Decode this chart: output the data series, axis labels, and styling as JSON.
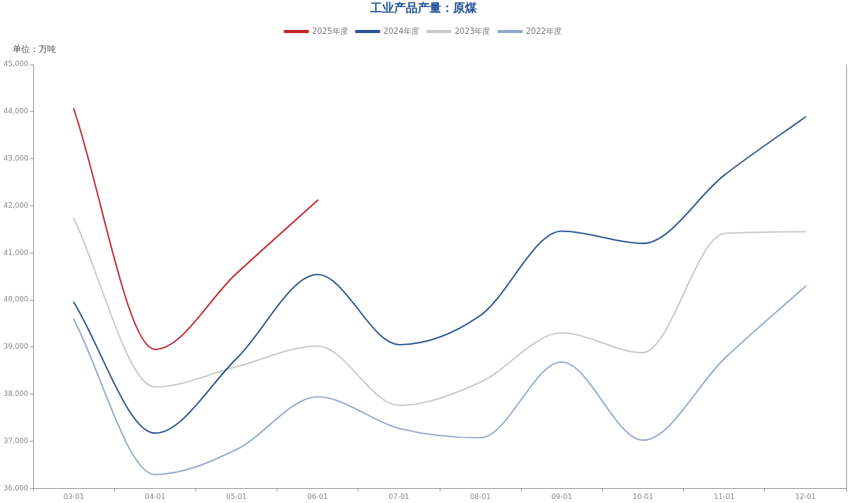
{
  "chart_data": {
    "type": "line",
    "title": "工业产品产量：原煤",
    "ylabel": "单位：万吨",
    "categories": [
      "03-01",
      "04-01",
      "05-01",
      "06-01",
      "07-01",
      "08-01",
      "09-01",
      "10-01",
      "11-01",
      "12-01"
    ],
    "series": [
      {
        "name": "2025年度",
        "color": "#c0282d",
        "values": [
          44060,
          38950,
          40560,
          42120,
          null,
          null,
          null,
          null,
          null,
          null
        ]
      },
      {
        "name": "2024年度",
        "color": "#2a5592",
        "values": [
          39950,
          37170,
          38750,
          40540,
          39050,
          39670,
          41460,
          41200,
          42650,
          43890
        ]
      },
      {
        "name": "2023年度",
        "color": "#c8c8c8",
        "values": [
          41730,
          38150,
          38580,
          39020,
          37760,
          38250,
          39300,
          38880,
          41410,
          41450
        ]
      },
      {
        "name": "2022年度",
        "color": "#94a9cf",
        "values": [
          39590,
          36290,
          36820,
          37940,
          37270,
          37070,
          38680,
          37020,
          38750,
          40290
        ]
      }
    ],
    "ylim": [
      36000,
      45000
    ],
    "yticks": [
      {
        "value": 36000,
        "label": "36,000"
      },
      {
        "value": 37000,
        "label": "37,000"
      },
      {
        "value": 38000,
        "label": "38,000"
      },
      {
        "value": 39000,
        "label": "39,000"
      },
      {
        "value": 40000,
        "label": "40,000"
      },
      {
        "value": 41000,
        "label": "41,000"
      },
      {
        "value": 42000,
        "label": "42,000"
      },
      {
        "value": 43000,
        "label": "43,000"
      },
      {
        "value": 44000,
        "label": "44,000"
      },
      {
        "value": 45000,
        "label": "45,000"
      }
    ],
    "legend": "top"
  }
}
